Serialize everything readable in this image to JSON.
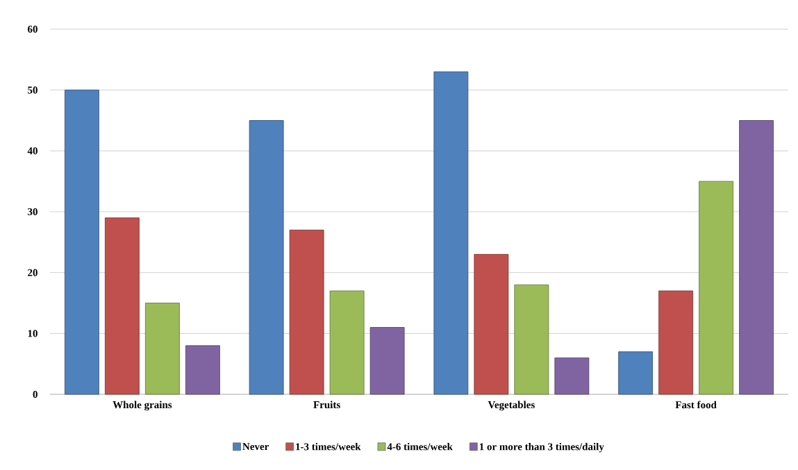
{
  "chart_data": {
    "type": "bar",
    "categories": [
      "Whole grains",
      "Fruits",
      "Vegetables",
      "Fast food"
    ],
    "series": [
      {
        "name": "Never",
        "color": "#4f81bd",
        "values": [
          50,
          45,
          53,
          7
        ]
      },
      {
        "name": "1-3 times/week",
        "color": "#c0504d",
        "values": [
          29,
          27,
          23,
          17
        ]
      },
      {
        "name": "4-6 times/week",
        "color": "#9bbb59",
        "values": [
          15,
          17,
          18,
          35
        ]
      },
      {
        "name": "1 or more than 3 times/daily",
        "color": "#8064a2",
        "values": [
          8,
          11,
          6,
          45
        ]
      }
    ],
    "ylim": [
      0,
      60
    ],
    "yticks": [
      0,
      10,
      20,
      30,
      40,
      50,
      60
    ],
    "grid": "y",
    "legend": "bottom"
  }
}
